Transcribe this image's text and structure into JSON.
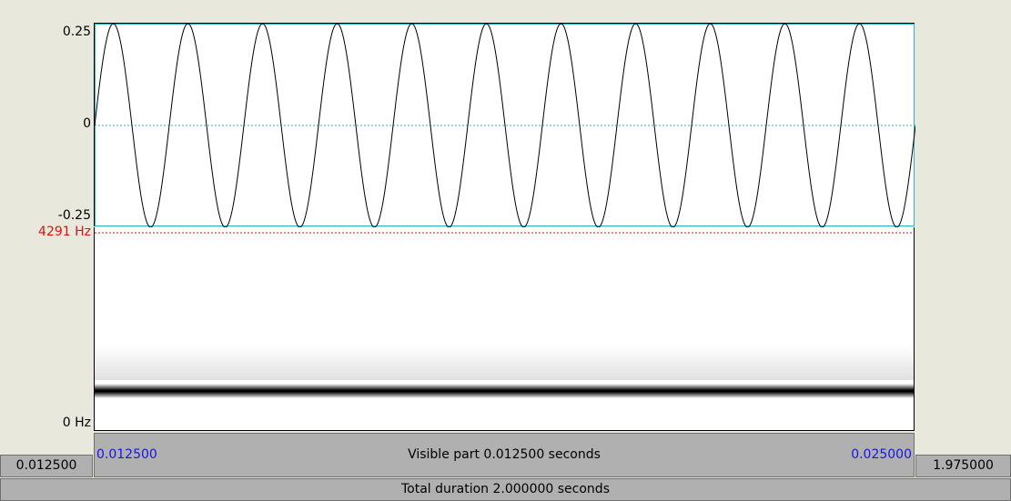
{
  "waveform": {
    "y_axis": {
      "top_label": "0.25",
      "mid_label": "0",
      "bottom_label": "-0.25"
    },
    "colors": {
      "cursor": "#30b0c0",
      "wave": "#000000"
    },
    "signal": {
      "amplitude": 0.25,
      "cycles_visible": 11,
      "start_phase": "rising-from-zero"
    }
  },
  "spectrogram": {
    "top_label": "4291 Hz",
    "bottom_label": "0 Hz",
    "colors": {
      "top_marker": "#e01010",
      "band": "#000000"
    },
    "band_frequency_fraction": 0.2
  },
  "time_bar": {
    "visible_start": "0.012500",
    "visible_end": "0.025000",
    "visible_label": "Visible part 0.012500 seconds",
    "left_before": "0.012500",
    "right_after": "1.975000",
    "total_label": "Total duration 2.000000 seconds"
  }
}
